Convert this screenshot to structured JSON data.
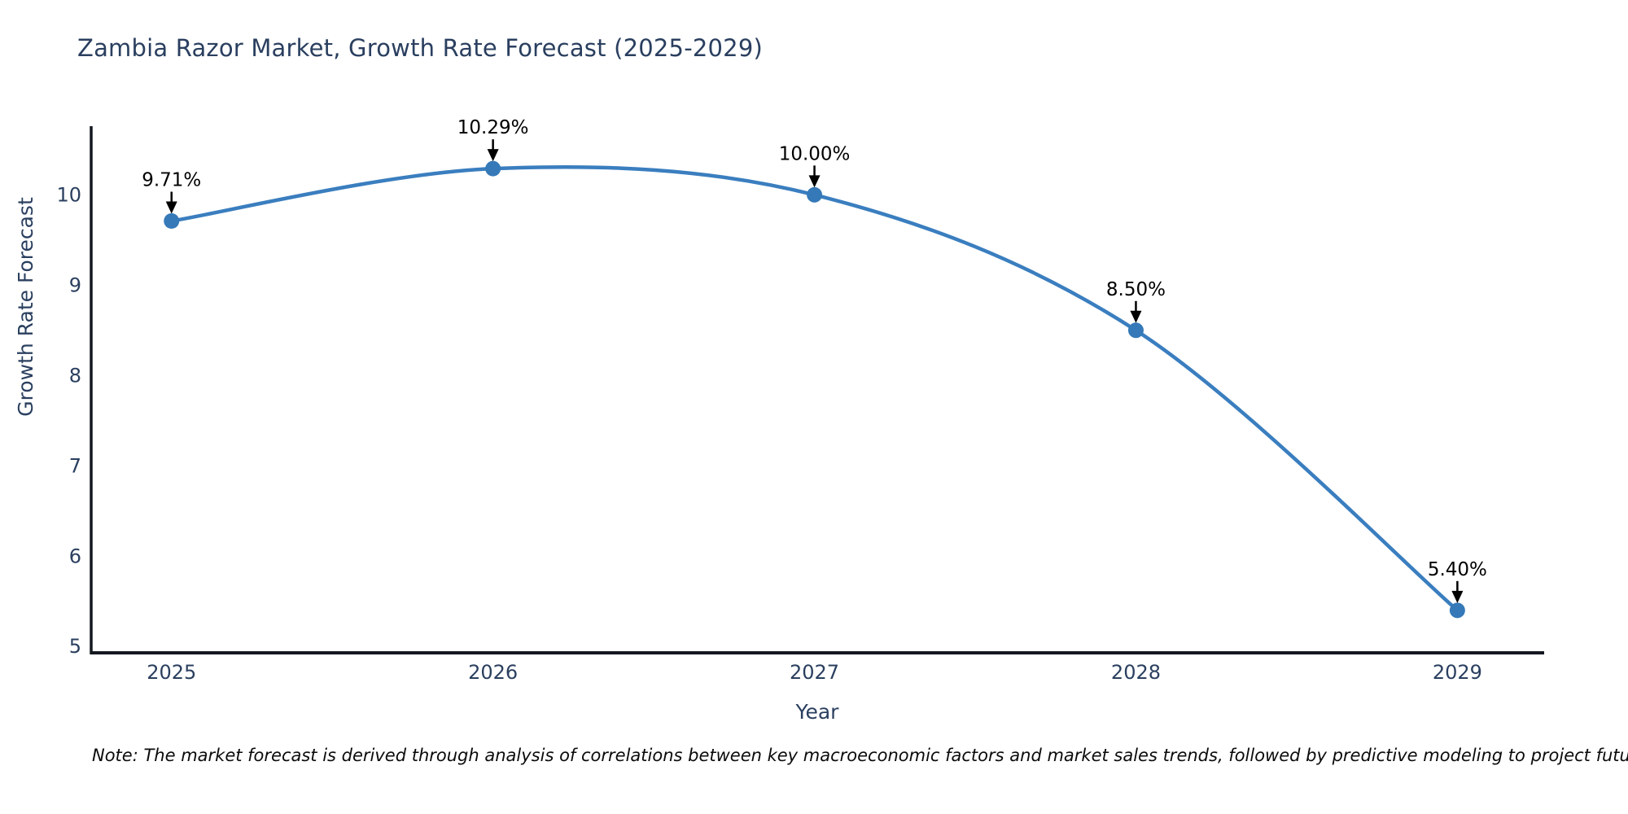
{
  "note": "Note: The market forecast is derived through analysis of correlations between key macroeconomic factors and market sales trends, followed by predictive modeling to project future sales.",
  "chart_data": {
    "type": "line",
    "title": "Zambia Razor Market, Growth Rate Forecast (2025-2029)",
    "xlabel": "Year",
    "ylabel": "Growth Rate Forecast",
    "x": [
      2025,
      2026,
      2027,
      2028,
      2029
    ],
    "y": [
      9.71,
      10.29,
      10.0,
      8.5,
      5.4
    ],
    "point_labels": [
      "9.71%",
      "10.29%",
      "10.00%",
      "8.50%",
      "5.40%"
    ],
    "x_tick_labels": [
      "2025",
      "2026",
      "2027",
      "2028",
      "2029"
    ],
    "y_ticks": [
      5,
      6,
      7,
      8,
      9,
      10
    ],
    "ylim": [
      4.93,
      10.76
    ],
    "xlim": [
      2024.75,
      2029.27
    ],
    "grid": false,
    "legend_position": "none",
    "line_shape": "spline",
    "colors": {
      "line": "#3a7ebf",
      "marker": "#3579b8",
      "axis_line": "#14181f",
      "tick_label": "#2a3f5f",
      "title": "#2a3f5f",
      "annotation": "#000000",
      "background": "#ffffff"
    }
  }
}
